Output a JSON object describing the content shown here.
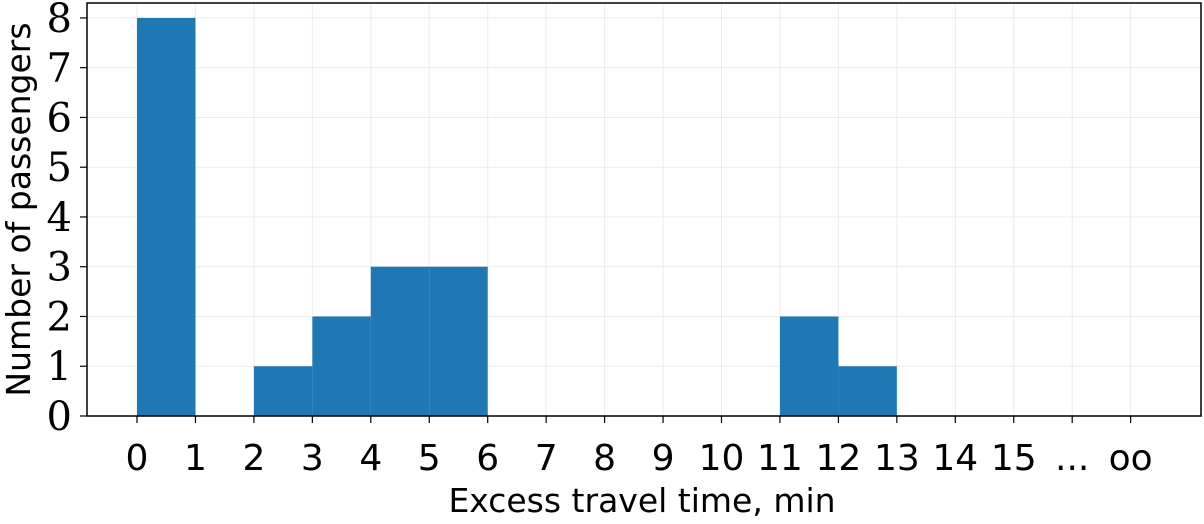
{
  "chart_data": {
    "type": "bar",
    "title": "",
    "xlabel": "Excess travel time, min",
    "ylabel": "Number of passengers",
    "x_tick_labels": [
      "0",
      "1",
      "2",
      "3",
      "4",
      "5",
      "6",
      "7",
      "8",
      "9",
      "10",
      "11",
      "12",
      "13",
      "14",
      "15",
      "...",
      "oo"
    ],
    "y_ticks": [
      0,
      1,
      2,
      3,
      4,
      5,
      6,
      7,
      8
    ],
    "ylim": [
      0,
      8.3
    ],
    "bins": [
      {
        "from": "0",
        "to": "1",
        "value": 8
      },
      {
        "from": "1",
        "to": "2",
        "value": 0
      },
      {
        "from": "2",
        "to": "3",
        "value": 1
      },
      {
        "from": "3",
        "to": "4",
        "value": 2
      },
      {
        "from": "4",
        "to": "5",
        "value": 3
      },
      {
        "from": "5",
        "to": "6",
        "value": 3
      },
      {
        "from": "6",
        "to": "7",
        "value": 0
      },
      {
        "from": "7",
        "to": "8",
        "value": 0
      },
      {
        "from": "8",
        "to": "9",
        "value": 0
      },
      {
        "from": "9",
        "to": "10",
        "value": 0
      },
      {
        "from": "10",
        "to": "11",
        "value": 0
      },
      {
        "from": "11",
        "to": "12",
        "value": 2
      },
      {
        "from": "12",
        "to": "13",
        "value": 1
      },
      {
        "from": "13",
        "to": "14",
        "value": 0
      },
      {
        "from": "14",
        "to": "15",
        "value": 0
      },
      {
        "from": "15",
        "to": "...",
        "value": 0
      },
      {
        "from": "...",
        "to": "oo",
        "value": 0
      }
    ],
    "grid": true,
    "bar_color": "#1f77b4"
  }
}
